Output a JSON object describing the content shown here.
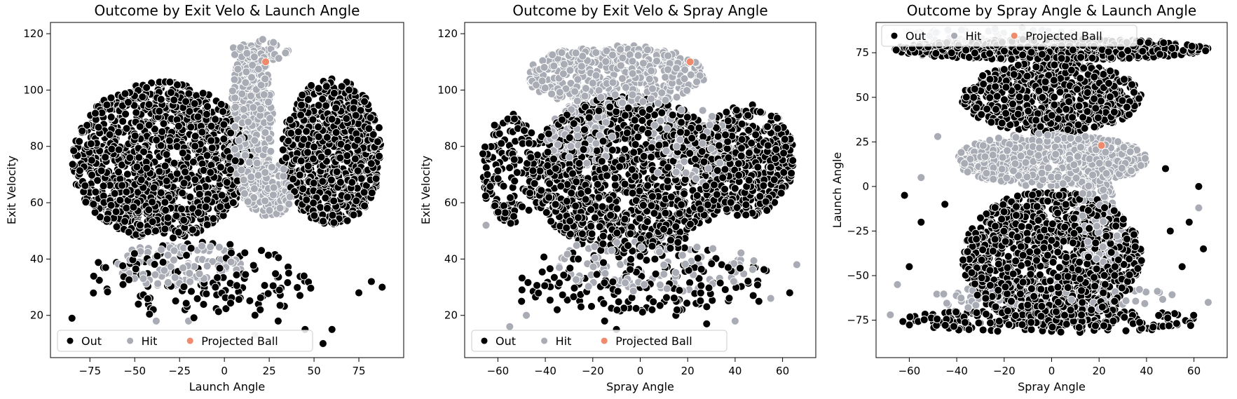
{
  "chart_data": [
    {
      "type": "scatter",
      "title": "Outcome by Exit Velo & Launch Angle",
      "xlabel": "Launch Angle",
      "ylabel": "Exit Velocity",
      "xlim": [
        -97,
        100
      ],
      "ylim": [
        5,
        124
      ],
      "xticks": [
        -75,
        -50,
        -25,
        0,
        25,
        50,
        75
      ],
      "yticks": [
        20,
        40,
        60,
        80,
        100,
        120
      ],
      "legend_placement": "lower-left",
      "grid": false,
      "series": [
        {
          "name": "Out",
          "color": "#000000",
          "regions": [
            {
              "cx": -35,
              "cy": 75,
              "rx": 50,
              "ry": 28,
              "n": 1300
            },
            {
              "cx": 60,
              "cy": 78,
              "rx": 28,
              "ry": 26,
              "n": 800
            },
            {
              "cx": -15,
              "cy": 32,
              "rx": 65,
              "ry": 14,
              "n": 140
            }
          ],
          "points": [
            [
              -85,
              19
            ],
            [
              -48,
              24
            ],
            [
              -22,
              22
            ],
            [
              -5,
              30
            ],
            [
              20,
              22
            ],
            [
              30,
              18
            ],
            [
              45,
              15
            ],
            [
              55,
              10
            ],
            [
              60,
              15
            ],
            [
              75,
              28
            ],
            [
              82,
              32
            ],
            [
              88,
              30
            ]
          ]
        },
        {
          "name": "Hit",
          "color": "#a9acb4",
          "regions": [
            {
              "cx": 15,
              "cy": 88,
              "rx": 12,
              "ry": 28,
              "n": 450
            },
            {
              "cx": 25,
              "cy": 65,
              "rx": 14,
              "ry": 10,
              "n": 160
            },
            {
              "cx": 20,
              "cy": 114,
              "rx": 16,
              "ry": 4,
              "n": 60
            },
            {
              "cx": -25,
              "cy": 38,
              "rx": 35,
              "ry": 8,
              "n": 110
            }
          ],
          "points": [
            [
              -20,
              18
            ],
            [
              17,
              13
            ],
            [
              -38,
              18
            ],
            [
              5,
              115
            ]
          ]
        },
        {
          "name": "Projected Ball",
          "color": "#f08a6c",
          "points": [
            [
              23,
              110
            ]
          ]
        }
      ]
    },
    {
      "type": "scatter",
      "title": "Outcome by Exit Velo & Spray Angle",
      "xlabel": "Spray Angle",
      "ylabel": "Exit Velocity",
      "xlim": [
        -74,
        74
      ],
      "ylim": [
        5,
        124
      ],
      "xticks": [
        -60,
        -40,
        -20,
        0,
        20,
        40,
        60
      ],
      "yticks": [
        20,
        40,
        60,
        80,
        100,
        120
      ],
      "legend_placement": "lower-left",
      "grid": false,
      "series": [
        {
          "name": "Out",
          "color": "#000000",
          "regions": [
            {
              "cx": -5,
              "cy": 70,
              "rx": 42,
              "ry": 28,
              "n": 1200
            },
            {
              "cx": 45,
              "cy": 75,
              "rx": 20,
              "ry": 20,
              "n": 450
            },
            {
              "cx": -55,
              "cy": 72,
              "rx": 12,
              "ry": 20,
              "n": 150
            },
            {
              "cx": 0,
              "cy": 33,
              "rx": 55,
              "ry": 12,
              "n": 160
            }
          ],
          "points": [
            [
              -50,
              25
            ],
            [
              -35,
              22
            ],
            [
              -15,
              18
            ],
            [
              -10,
              15
            ],
            [
              5,
              22
            ],
            [
              15,
              20
            ],
            [
              28,
              17
            ],
            [
              50,
              25
            ],
            [
              63,
              28
            ]
          ]
        },
        {
          "name": "Hit",
          "color": "#a9acb4",
          "regions": [
            {
              "cx": -10,
              "cy": 105,
              "rx": 38,
              "ry": 11,
              "n": 500
            },
            {
              "cx": -25,
              "cy": 85,
              "rx": 15,
              "ry": 12,
              "n": 120
            },
            {
              "cx": 20,
              "cy": 80,
              "rx": 18,
              "ry": 14,
              "n": 120
            },
            {
              "cx": 5,
              "cy": 38,
              "rx": 45,
              "ry": 10,
              "n": 100
            }
          ],
          "points": [
            [
              -65,
              52
            ],
            [
              -55,
              16
            ],
            [
              -48,
              20
            ],
            [
              -2,
              12
            ],
            [
              40,
              18
            ],
            [
              55,
              26
            ],
            [
              66,
              38
            ]
          ]
        },
        {
          "name": "Projected Ball",
          "color": "#f08a6c",
          "points": [
            [
              21,
              110
            ]
          ]
        }
      ]
    },
    {
      "type": "scatter",
      "title": "Outcome by Spray Angle & Launch Angle",
      "xlabel": "Spray Angle",
      "ylabel": "Launch Angle",
      "xlim": [
        -74,
        74
      ],
      "ylim": [
        -96,
        92
      ],
      "xticks": [
        -60,
        -40,
        -20,
        0,
        20,
        40,
        60
      ],
      "yticks": [
        -75,
        -50,
        -25,
        0,
        25,
        50,
        75
      ],
      "legend_placement": "upper-left",
      "grid": false,
      "series": [
        {
          "name": "Out",
          "color": "#000000",
          "regions": [
            {
              "cx": 0,
              "cy": 77,
              "rx": 66,
              "ry": 6,
              "n": 700
            },
            {
              "cx": 0,
              "cy": 50,
              "rx": 38,
              "ry": 20,
              "n": 700
            },
            {
              "cx": 0,
              "cy": -40,
              "rx": 38,
              "ry": 38,
              "n": 1200
            },
            {
              "cx": 0,
              "cy": -75,
              "rx": 66,
              "ry": 7,
              "n": 200
            }
          ],
          "points": [
            [
              -62,
              -5
            ],
            [
              -55,
              -20
            ],
            [
              -45,
              -10
            ],
            [
              -60,
              -45
            ],
            [
              50,
              -25
            ],
            [
              58,
              -20
            ],
            [
              62,
              0
            ],
            [
              48,
              10
            ],
            [
              55,
              -45
            ],
            [
              64,
              -35
            ]
          ]
        },
        {
          "name": "Hit",
          "color": "#a9acb4",
          "regions": [
            {
              "cx": 0,
              "cy": 15,
              "rx": 40,
              "ry": 15,
              "n": 700
            },
            {
              "cx": 20,
              "cy": -20,
              "rx": 10,
              "ry": 25,
              "n": 150
            },
            {
              "cx": -20,
              "cy": 85,
              "rx": 40,
              "ry": 4,
              "n": 60
            },
            {
              "cx": 0,
              "cy": -62,
              "rx": 55,
              "ry": 8,
              "n": 90
            }
          ],
          "points": [
            [
              -48,
              28
            ],
            [
              -55,
              5
            ],
            [
              -65,
              -55
            ],
            [
              62,
              -12
            ],
            [
              66,
              -65
            ],
            [
              -68,
              -72
            ]
          ]
        },
        {
          "name": "Projected Ball",
          "color": "#f08a6c",
          "points": [
            [
              21,
              23
            ]
          ]
        }
      ]
    }
  ]
}
